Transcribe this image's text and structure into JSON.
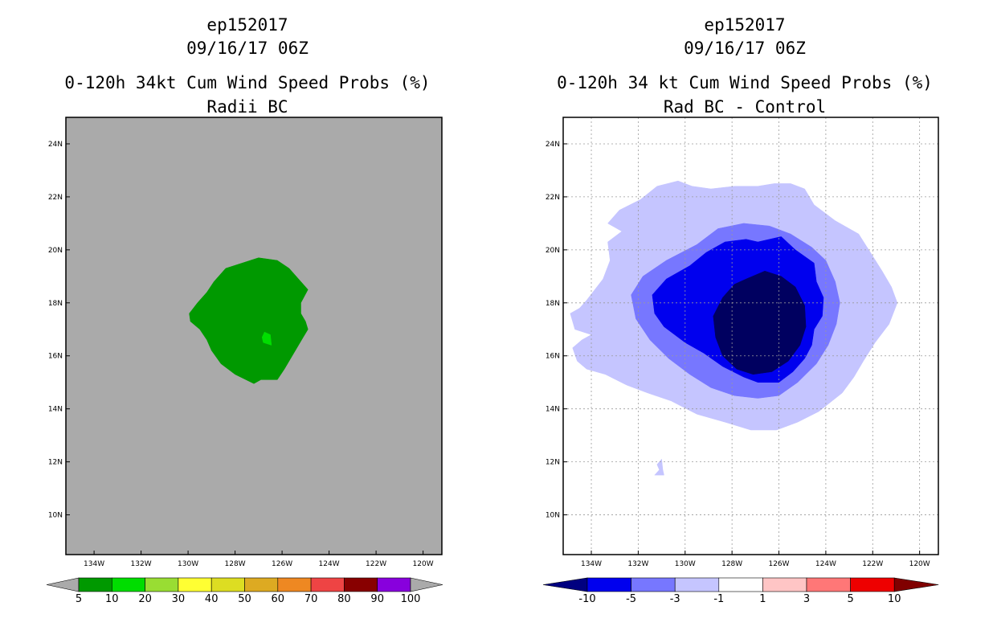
{
  "chart_data": [
    {
      "type": "heatmap",
      "storm_id": "ep152017",
      "datetime": "09/16/17 06Z",
      "title": "0-120h 34kt Cum Wind Speed Probs (%)",
      "subtitle": "Radii BC",
      "background_color": "#aaaaaa",
      "lat_ticks": [
        "24N",
        "22N",
        "20N",
        "18N",
        "16N",
        "14N",
        "12N",
        "10N"
      ],
      "lat_values": [
        24,
        22,
        20,
        18,
        16,
        14,
        12,
        10
      ],
      "lon_ticks": [
        "134W",
        "132W",
        "130W",
        "128W",
        "126W",
        "124W",
        "122W",
        "120W"
      ],
      "lon_values": [
        -134,
        -132,
        -130,
        -128,
        -126,
        -124,
        -122,
        -120
      ],
      "xlim": [
        -135.2,
        -119.2
      ],
      "ylim": [
        8.5,
        25.0
      ],
      "grid": false,
      "colorbar": {
        "labels": [
          "5",
          "10",
          "20",
          "30",
          "40",
          "50",
          "60",
          "70",
          "80",
          "90",
          "100"
        ],
        "colors": [
          "#009900",
          "#00dd00",
          "#99dd33",
          "#ffff33",
          "#dddd22",
          "#ddaa22",
          "#ee8822",
          "#ee4444",
          "#880000",
          "#8800dd"
        ],
        "under_color": "#aaaaaa",
        "over_color": "#aaaaaa"
      },
      "contours": [
        {
          "level": "5-10",
          "color": "#009900",
          "points": [
            [
              -127.7,
              19.5
            ],
            [
              -127.0,
              19.7
            ],
            [
              -126.2,
              19.6
            ],
            [
              -125.7,
              19.3
            ],
            [
              -125.3,
              18.9
            ],
            [
              -124.9,
              18.5
            ],
            [
              -125.2,
              18.0
            ],
            [
              -125.2,
              17.6
            ],
            [
              -125.0,
              17.3
            ],
            [
              -124.9,
              17.0
            ],
            [
              -125.1,
              16.7
            ],
            [
              -125.5,
              16.1
            ],
            [
              -125.9,
              15.5
            ],
            [
              -126.2,
              15.1
            ],
            [
              -126.9,
              15.1
            ],
            [
              -127.2,
              14.95
            ],
            [
              -128.0,
              15.3
            ],
            [
              -128.6,
              15.7
            ],
            [
              -129.0,
              16.2
            ],
            [
              -129.2,
              16.6
            ],
            [
              -129.5,
              17.0
            ],
            [
              -129.9,
              17.3
            ],
            [
              -129.95,
              17.6
            ],
            [
              -129.6,
              18.0
            ],
            [
              -129.2,
              18.4
            ],
            [
              -128.9,
              18.8
            ],
            [
              -128.4,
              19.3
            ]
          ]
        },
        {
          "level": "10-20",
          "color": "#00dd00",
          "points": [
            [
              -126.75,
              16.9
            ],
            [
              -126.5,
              16.8
            ],
            [
              -126.45,
              16.4
            ],
            [
              -126.8,
              16.5
            ],
            [
              -126.85,
              16.7
            ]
          ]
        }
      ]
    },
    {
      "type": "heatmap",
      "storm_id": "ep152017",
      "datetime": "09/16/17 06Z",
      "title": "0-120h 34 kt Cum Wind Speed Probs (%)",
      "subtitle": "Rad BC - Control",
      "background_color": "#ffffff",
      "lat_ticks": [
        "24N",
        "22N",
        "20N",
        "18N",
        "16N",
        "14N",
        "12N",
        "10N"
      ],
      "lat_values": [
        24,
        22,
        20,
        18,
        16,
        14,
        12,
        10
      ],
      "lon_ticks": [
        "134W",
        "132W",
        "130W",
        "128W",
        "126W",
        "124W",
        "122W",
        "120W"
      ],
      "lon_values": [
        -134,
        -132,
        -130,
        -128,
        -126,
        -124,
        -122,
        -120
      ],
      "xlim": [
        -135.2,
        -119.2
      ],
      "ylim": [
        8.5,
        25.0
      ],
      "grid": true,
      "colorbar": {
        "labels": [
          "-10",
          "-5",
          "-3",
          "-1",
          "1",
          "3",
          "5",
          "10"
        ],
        "colors": [
          "#0000ee",
          "#7777ff",
          "#c5c5ff",
          "#ffffff",
          "#ffc5c5",
          "#ff7777",
          "#ee0000"
        ],
        "under_color": "#000080",
        "over_color": "#800000"
      },
      "contours": [
        {
          "level": "-3 to -1",
          "color": "#c5c5ff",
          "points": [
            [
              -131.2,
              22.4
            ],
            [
              -130.3,
              22.6
            ],
            [
              -129.7,
              22.4
            ],
            [
              -128.9,
              22.3
            ],
            [
              -127.9,
              22.4
            ],
            [
              -126.9,
              22.4
            ],
            [
              -126.2,
              22.5
            ],
            [
              -125.5,
              22.5
            ],
            [
              -124.9,
              22.3
            ],
            [
              -124.5,
              21.7
            ],
            [
              -123.6,
              21.1
            ],
            [
              -122.6,
              20.6
            ],
            [
              -122.1,
              19.9
            ],
            [
              -121.6,
              19.2
            ],
            [
              -121.2,
              18.6
            ],
            [
              -120.95,
              18.0
            ],
            [
              -121.3,
              17.2
            ],
            [
              -121.9,
              16.5
            ],
            [
              -122.4,
              15.8
            ],
            [
              -122.8,
              15.2
            ],
            [
              -123.3,
              14.6
            ],
            [
              -124.3,
              13.9
            ],
            [
              -125.2,
              13.5
            ],
            [
              -126.1,
              13.2
            ],
            [
              -127.2,
              13.2
            ],
            [
              -128.3,
              13.5
            ],
            [
              -129.5,
              13.8
            ],
            [
              -130.6,
              14.3
            ],
            [
              -131.6,
              14.6
            ],
            [
              -132.5,
              14.9
            ],
            [
              -133.4,
              15.3
            ],
            [
              -134.2,
              15.5
            ],
            [
              -134.6,
              15.8
            ],
            [
              -134.8,
              16.3
            ],
            [
              -134.4,
              16.6
            ],
            [
              -134.0,
              16.8
            ],
            [
              -134.7,
              17.0
            ],
            [
              -134.9,
              17.6
            ],
            [
              -134.5,
              17.8
            ],
            [
              -134.2,
              18.1
            ],
            [
              -133.5,
              18.9
            ],
            [
              -133.2,
              19.6
            ],
            [
              -133.3,
              20.3
            ],
            [
              -132.7,
              20.7
            ],
            [
              -133.3,
              21.0
            ],
            [
              -132.8,
              21.5
            ],
            [
              -131.9,
              21.9
            ]
          ]
        },
        {
          "level": "-3 to -1 (small)",
          "color": "#c5c5ff",
          "points": [
            [
              -131.2,
              11.9
            ],
            [
              -131.0,
              12.1
            ],
            [
              -130.95,
              11.7
            ],
            [
              -130.9,
              11.5
            ],
            [
              -131.3,
              11.5
            ],
            [
              -131.1,
              11.7
            ]
          ]
        },
        {
          "level": "-5 to -3",
          "color": "#7777ff",
          "points": [
            [
              -129.5,
              20.2
            ],
            [
              -128.6,
              20.8
            ],
            [
              -127.5,
              21.0
            ],
            [
              -126.4,
              20.9
            ],
            [
              -125.5,
              20.6
            ],
            [
              -124.6,
              20.1
            ],
            [
              -124.0,
              19.6
            ],
            [
              -123.6,
              18.8
            ],
            [
              -123.4,
              18.0
            ],
            [
              -123.55,
              17.2
            ],
            [
              -123.9,
              16.4
            ],
            [
              -124.4,
              15.7
            ],
            [
              -125.2,
              15.0
            ],
            [
              -126.0,
              14.5
            ],
            [
              -126.9,
              14.4
            ],
            [
              -127.9,
              14.5
            ],
            [
              -128.9,
              14.8
            ],
            [
              -129.8,
              15.3
            ],
            [
              -130.7,
              15.9
            ],
            [
              -131.5,
              16.6
            ],
            [
              -132.1,
              17.4
            ],
            [
              -132.3,
              18.3
            ],
            [
              -131.8,
              19.0
            ],
            [
              -130.8,
              19.6
            ]
          ]
        },
        {
          "level": "-10 to -5",
          "color": "#0000ee",
          "points": [
            [
              -128.3,
              20.3
            ],
            [
              -127.4,
              20.4
            ],
            [
              -126.9,
              20.3
            ],
            [
              -125.9,
              20.5
            ],
            [
              -125.3,
              20.0
            ],
            [
              -124.5,
              19.5
            ],
            [
              -124.4,
              18.8
            ],
            [
              -124.1,
              18.2
            ],
            [
              -124.15,
              17.5
            ],
            [
              -124.5,
              17.0
            ],
            [
              -124.6,
              16.4
            ],
            [
              -124.9,
              15.9
            ],
            [
              -125.4,
              15.4
            ],
            [
              -126.0,
              15.0
            ],
            [
              -126.9,
              15.0
            ],
            [
              -127.5,
              15.2
            ],
            [
              -128.4,
              15.6
            ],
            [
              -129.2,
              16.1
            ],
            [
              -130.0,
              16.5
            ],
            [
              -130.9,
              17.1
            ],
            [
              -131.3,
              17.6
            ],
            [
              -131.4,
              18.3
            ],
            [
              -130.8,
              18.9
            ],
            [
              -129.8,
              19.4
            ],
            [
              -129.1,
              19.9
            ]
          ]
        },
        {
          "level": "< -10",
          "color": "#000060",
          "points": [
            [
              -127.4,
              18.9
            ],
            [
              -126.6,
              19.2
            ],
            [
              -125.9,
              19.0
            ],
            [
              -125.3,
              18.6
            ],
            [
              -124.9,
              17.9
            ],
            [
              -124.85,
              17.1
            ],
            [
              -125.1,
              16.4
            ],
            [
              -125.6,
              15.8
            ],
            [
              -126.3,
              15.4
            ],
            [
              -127.1,
              15.3
            ],
            [
              -127.8,
              15.5
            ],
            [
              -128.4,
              16.0
            ],
            [
              -128.7,
              16.7
            ],
            [
              -128.8,
              17.5
            ],
            [
              -128.4,
              18.2
            ],
            [
              -127.9,
              18.7
            ]
          ]
        }
      ]
    }
  ]
}
